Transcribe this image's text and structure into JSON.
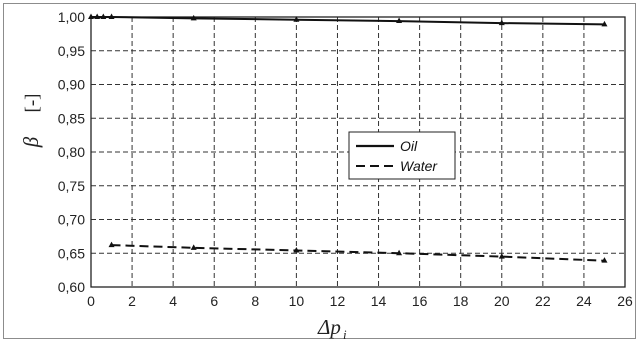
{
  "chart_data": {
    "type": "line",
    "xlabel": {
      "main": "Δp",
      "sub": "i"
    },
    "ylabel": {
      "symbol": "β",
      "unit": "[-]"
    },
    "xlim": [
      0,
      26
    ],
    "ylim": [
      0.6,
      1.0
    ],
    "x_ticks": [
      "0",
      "2",
      "4",
      "6",
      "8",
      "10",
      "12",
      "14",
      "16",
      "18",
      "20",
      "22",
      "24",
      "26"
    ],
    "y_ticks": [
      "0,60",
      "0,65",
      "0,70",
      "0,75",
      "0,80",
      "0,85",
      "0,90",
      "0,95",
      "1,00"
    ],
    "grid": "both",
    "legend_position": "center-right",
    "series": [
      {
        "name": "Oil",
        "line_style": "solid",
        "color": "#111111",
        "points": [
          [
            0,
            1.0
          ],
          [
            0.3,
            1.0
          ],
          [
            0.6,
            1.0
          ],
          [
            1,
            1.0
          ],
          [
            5,
            0.998
          ],
          [
            10,
            0.996
          ],
          [
            15,
            0.994
          ],
          [
            20,
            0.991
          ],
          [
            25,
            0.989
          ]
        ]
      },
      {
        "name": "Water",
        "line_style": "dashed",
        "color": "#111111",
        "points": [
          [
            1,
            0.662
          ],
          [
            5,
            0.658
          ],
          [
            10,
            0.654
          ],
          [
            15,
            0.65
          ],
          [
            20,
            0.645
          ],
          [
            25,
            0.639
          ]
        ]
      }
    ]
  }
}
